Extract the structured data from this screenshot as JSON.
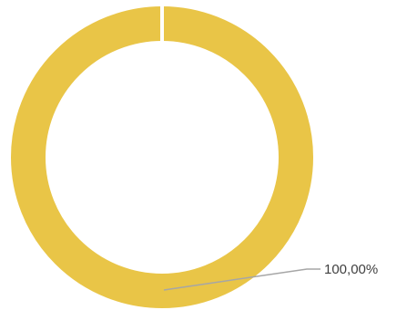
{
  "chart_data": {
    "type": "pie",
    "variant": "donut",
    "slices": [
      {
        "value": 100,
        "label": "100,00%",
        "color": "#E9C547"
      }
    ],
    "legend": "none"
  },
  "colors": {
    "background": "#FFFFFF",
    "slice": "#E9C547",
    "separator": "#FFFFFF",
    "leader_line": "#A6A6A6",
    "label_text": "#404040"
  }
}
